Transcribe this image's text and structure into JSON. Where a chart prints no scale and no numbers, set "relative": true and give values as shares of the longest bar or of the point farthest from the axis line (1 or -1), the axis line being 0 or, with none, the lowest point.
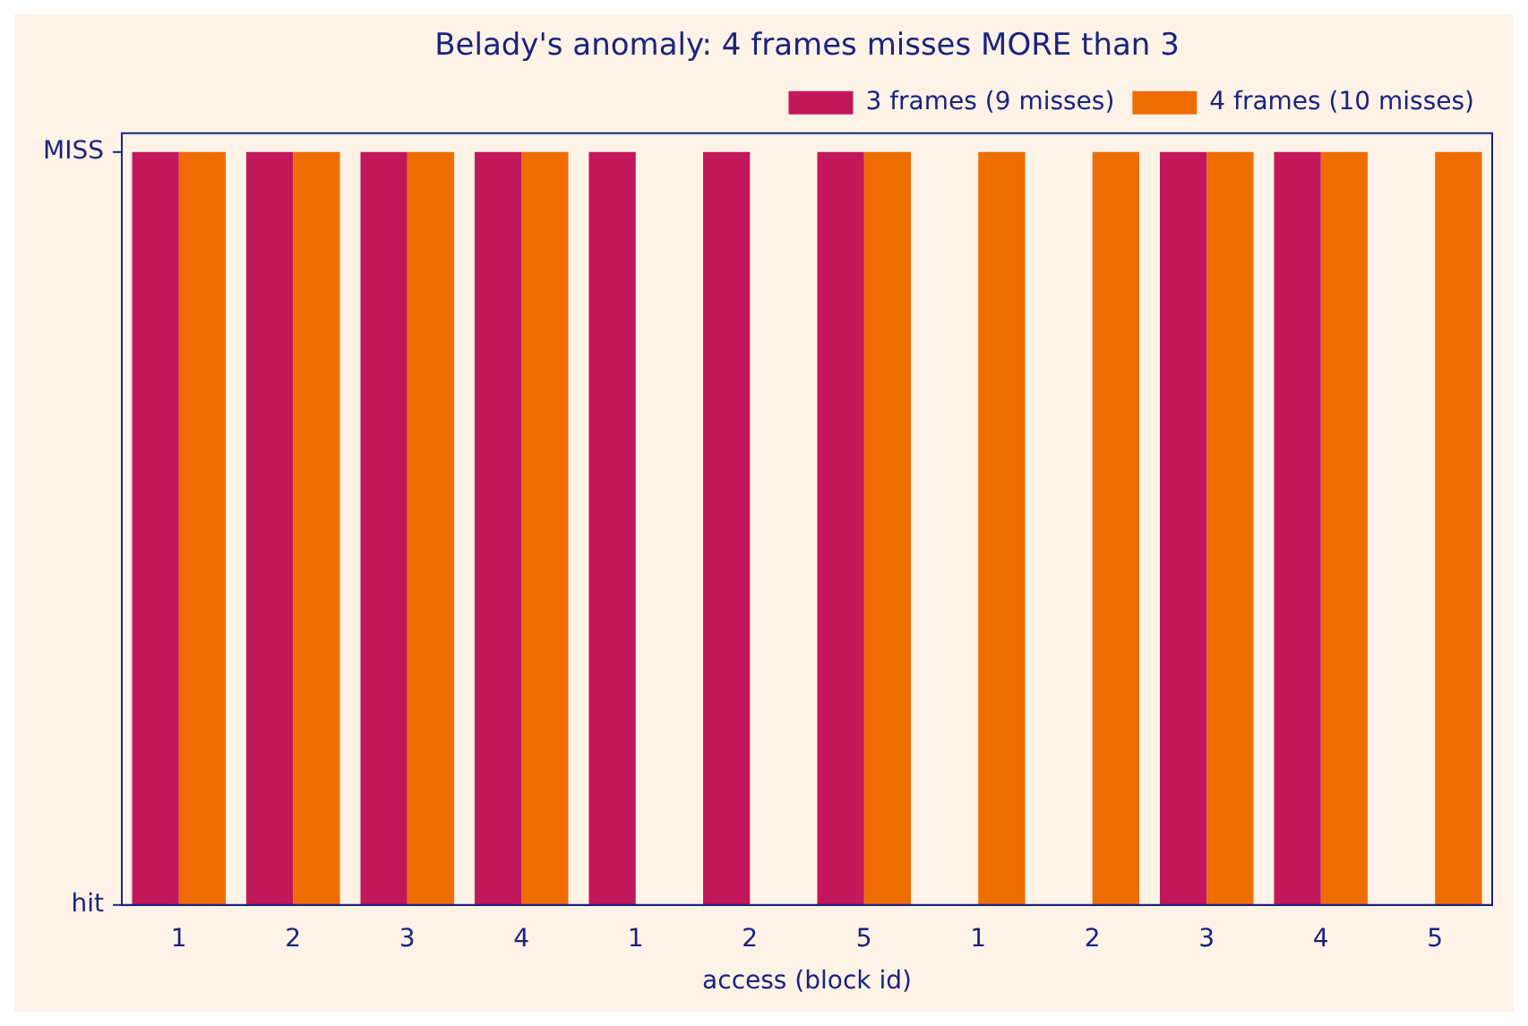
{
  "chart_data": {
    "type": "bar",
    "title": "Belady's anomaly: 4 frames misses MORE than 3",
    "xlabel": "access (block id)",
    "categories": [
      "1",
      "2",
      "3",
      "4",
      "1",
      "2",
      "5",
      "1",
      "2",
      "3",
      "4",
      "5"
    ],
    "series": [
      {
        "name": "3 frames (9 misses)",
        "color": "#c2185b",
        "values": [
          1,
          1,
          1,
          1,
          1,
          1,
          1,
          0,
          0,
          1,
          1,
          0
        ]
      },
      {
        "name": "4 frames (10 misses)",
        "color": "#ef6c00",
        "values": [
          1,
          1,
          1,
          1,
          0,
          0,
          1,
          1,
          1,
          1,
          1,
          1
        ]
      }
    ],
    "relative": true,
    "annotations": [
      "hit",
      "MISS"
    ],
    "grid": false,
    "legend": "top right"
  }
}
